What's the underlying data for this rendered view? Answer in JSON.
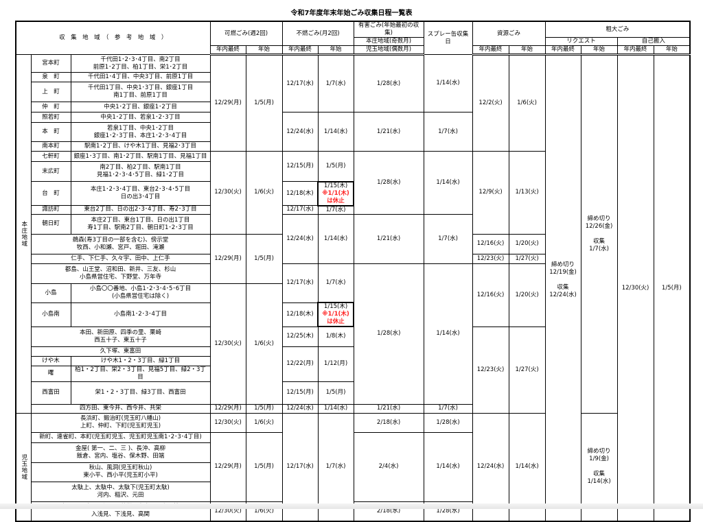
{
  "title": "令和7年度年末年始ごみ収集日程一覧表",
  "header": {
    "area": "収　集　地　域　（　参　考　地　域　）",
    "burnable": "可燃ごみ(週2回)",
    "nonburnable": "不燃ごみ(月2回)",
    "hazardous": [
      "有害ごみ(年始最初の収集)",
      "本庄地域(奇数月)",
      "児玉地域(偶数月)"
    ],
    "spray": "スプレー缶収集日",
    "resource": "資源ごみ",
    "bulky": "粗大ごみ",
    "request": "リクエスト",
    "self": "自己搬入",
    "last": "年内最終",
    "first": "年始"
  },
  "regions": [
    "本庄地域",
    "児玉地域"
  ],
  "areas": [
    {
      "town": "宮本町",
      "detail": "千代田1･2･3･4丁目、南2丁目\n前原1･2丁目、柏1丁目、栄1･2丁目"
    },
    {
      "town": "泉　町",
      "detail": "千代田1･4丁目、中央3丁目、前原1丁目"
    },
    {
      "town": "上　町",
      "detail": "千代田1丁目、中央1･3丁目、銀座1丁目\n南1丁目、前原1丁目"
    },
    {
      "town": "仲　町",
      "detail": "中央1･2丁目、銀座1･2丁目"
    },
    {
      "town": "照若町",
      "detail": "中央1･2丁目、若泉1･2･3丁目"
    },
    {
      "town": "本　町",
      "detail": "若泉1丁目、中央1･2丁目\n銀座1･2･3丁目、本庄1･2･3･4丁目"
    },
    {
      "town": "南本町",
      "detail": "駅南1･2丁目、けや木1丁目、見福2･3丁目"
    },
    {
      "town": "七軒町",
      "detail": "銀座1･3丁目、南1･2丁目、駅南1丁目、見福1丁目"
    },
    {
      "town": "末広町",
      "detail": "南2丁目、柏2丁目、駅南1丁目\n見福1･2･3･4･5丁目、緑1･2丁目"
    },
    {
      "town": "台　町",
      "detail": "本庄1･2･3･4丁目、東台2･3･4･5丁目\n日の出3･4丁目"
    },
    {
      "town": "諏訪町",
      "detail": "東台2丁目、日の出2･3･4丁目、寿2･3丁目"
    },
    {
      "town": "朝日町",
      "detail": "本庄2丁目、東台1丁目、日の出1丁目\n寿1丁目、駅南2丁目、朝日町1･2･3丁目"
    },
    {
      "merged": "鵜森(寿3丁目の一部を含む)、傍示堂\n牧西、小和瀬、宮戸、堀田、滝瀬"
    },
    {
      "merged": "仁手、下仁手、久々宇、田中、上仁手"
    },
    {
      "merged": "都島、山王堂、沼和田、新井、三友、杉山\n小島県営住宅、下野堂、万年寺"
    },
    {
      "town": "小島",
      "detail": "小島〇〇番地、小島1･2･3･4･5･6丁目\n(小島県営住宅は除く)"
    },
    {
      "town": "小島南",
      "detail": "小島南1･2･3･4丁目"
    },
    {
      "merged": "本田、新田原、四季の里、栗崎\n西五十子、東五十子"
    },
    {
      "merged": "久下塚、東富田"
    },
    {
      "town": "けや木",
      "detail": "けや木1・2・3丁目、緑1丁目"
    },
    {
      "town": "曙",
      "detail": "柏1・2丁目、栄2・3丁目、見福5丁目、緑2・3丁目"
    },
    {
      "town": "西富田",
      "detail": "栄1・2・3丁目、緑3丁目、西富田"
    },
    {
      "merged": "四方田、東今井、西今井、共栄"
    },
    {
      "merged": "長浜町、鍛治町(児玉町八幡山)\n上町、仲町、下町(児玉町児玉)"
    },
    {
      "merged": "新町、連雀町、本町(児玉町児玉、児玉町児玉南1･2･3･4丁目)"
    },
    {
      "merged": "金屋( 第一、二、三 )、長沖、高柳\n飯倉、宮内、塩谷、保木野、田端"
    },
    {
      "merged": "秋山、風洞(児玉町秋山)\n東小平、西小平(児玉町小平)"
    },
    {
      "merged": "太駄上、太駄中、太駄下(児玉町太駄)\n河内、稲沢、元田"
    },
    {
      "merged": "蛭川、下真下、児玉町共栄、上真下、吉田林\n入浅見、下浅見、高関"
    }
  ],
  "columns": {
    "burnable_last": [
      "12/29(月)",
      "12/30(火)",
      "12/29(月)",
      "12/30(火)",
      "12/29(月)",
      "12/30(火)",
      "12/29(月)",
      "12/30(火)"
    ],
    "burnable_first": [
      "1/5(月)",
      "1/6(火)",
      "1/5(月)",
      "1/6(火)",
      "1/5(月)",
      "1/6(火)",
      "1/5(月)",
      "1/6(火)"
    ],
    "nonburnable_last": [
      "12/17(水)",
      "12/24(水)",
      "12/15(月)",
      "12/18(木)",
      "12/17(水)",
      "12/24(水)",
      "12/17(水)",
      "12/18(木)",
      "12/25(木)",
      "12/22(月)",
      "12/15(月)",
      "12/24(水)",
      "12/17(水)"
    ],
    "nonburnable_first": [
      "1/7(水)",
      "1/14(水)",
      "1/5(月)",
      {
        "date": "1/15(木)",
        "note": "※1/1(木)\nは休止"
      },
      "1/7(水)",
      "1/14(水)",
      "1/7(水)",
      {
        "date": "1/15(木)",
        "note": "※1/1(木)\nは休止"
      },
      "1/8(木)",
      "1/12(月)",
      "1/5(月)",
      "1/14(水)",
      "1/7(水)"
    ],
    "hazardous": [
      "1/28(水)",
      "1/21(水)",
      "1/28(水)",
      "1/21(水)",
      "1/28(水)",
      "1/21(水)",
      "2/18(水)",
      "2/4(水)",
      "2/18(水)"
    ],
    "spray": [
      "1/14(水)",
      "1/7(水)",
      "1/14(水)",
      "1/7(水)",
      "1/14(水)",
      "1/7(水)",
      "1/28(水)",
      "1/14(水)",
      "1/28(水)"
    ],
    "resource_last": [
      "12/2(火)",
      "12/9(火)",
      "12/16(火)",
      "12/23(火)",
      "12/16(火)",
      "12/23(火)",
      "12/24(水)"
    ],
    "resource_first": [
      "1/6(火)",
      "1/13(火)",
      "1/20(火)",
      "1/27(火)",
      "1/20(火)",
      "1/27(火)",
      "1/14(水)"
    ],
    "request_last": [
      "締め切り\n12/19(金)\n\n収集\n12/24(水)"
    ],
    "request_first": [
      "締め切り\n12/26(金)\n\n収集\n1/7(水)",
      "締め切り\n1/9(金)\n\n収集\n1/14(水)"
    ],
    "self_last": [
      "12/30(火)"
    ],
    "self_first": [
      "1/5(月)"
    ]
  },
  "colors": {
    "notice": "#ff2020",
    "border": "#000000"
  }
}
